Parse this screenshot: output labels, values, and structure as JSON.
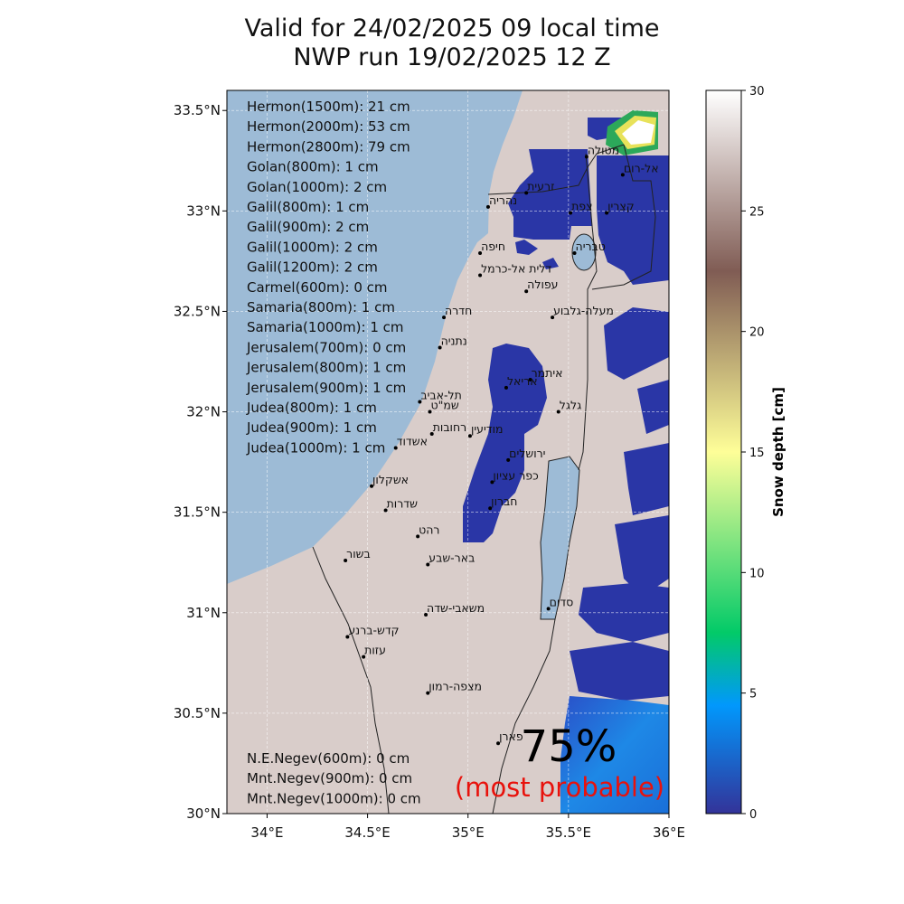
{
  "title": {
    "line1": "Valid for 24/02/2025 09 local time",
    "line2": "NWP run 19/02/2025 12 Z"
  },
  "map": {
    "lon_range": [
      33.8,
      36.0
    ],
    "lat_range": [
      30.0,
      33.6
    ],
    "lon_ticks": [
      "34°E",
      "34.5°E",
      "35°E",
      "35.5°E",
      "36°E"
    ],
    "lat_ticks": [
      "30°N",
      "30.5°N",
      "31°N",
      "31.5°N",
      "32°N",
      "32.5°N",
      "33°N",
      "33.5°N"
    ],
    "grid": true,
    "colors": {
      "sea": "#9dbbd6",
      "land": "#d9cdca",
      "snow_low": "#2a36a6"
    }
  },
  "north_stats": [
    "Hermon(1500m): 21 cm",
    "Hermon(2000m): 53 cm",
    "Hermon(2800m): 79 cm",
    "Golan(800m): 1 cm",
    "Golan(1000m): 2 cm",
    "Galil(800m): 1 cm",
    "Galil(900m): 2 cm",
    "Galil(1000m): 2 cm",
    "Galil(1200m): 2 cm",
    "Carmel(600m): 0 cm",
    "Samaria(800m): 1 cm",
    "Samaria(1000m): 1 cm",
    "Jerusalem(700m): 0 cm",
    "Jerusalem(800m): 1 cm",
    "Jerusalem(900m): 1 cm",
    "Judea(800m): 1 cm",
    "Judea(900m): 1 cm",
    "Judea(1000m): 1 cm"
  ],
  "south_stats": [
    "N.E.Negev(600m): 0 cm",
    "Mnt.Negev(900m): 0 cm",
    "Mnt.Negev(1000m): 0 cm"
  ],
  "probability": {
    "value": "75%",
    "label": "(most probable)",
    "label_color": "#e8120c"
  },
  "cities": [
    {
      "name": "מטולה",
      "lon": 35.59,
      "lat": 33.27
    },
    {
      "name": "אל-רום",
      "lon": 35.77,
      "lat": 33.18
    },
    {
      "name": "זרעית",
      "lon": 35.29,
      "lat": 33.09
    },
    {
      "name": "נהריה",
      "lon": 35.1,
      "lat": 33.02
    },
    {
      "name": "צפת",
      "lon": 35.51,
      "lat": 32.99
    },
    {
      "name": "קצרין",
      "lon": 35.69,
      "lat": 32.99
    },
    {
      "name": "חיפה",
      "lon": 35.06,
      "lat": 32.79
    },
    {
      "name": "טבריה",
      "lon": 35.53,
      "lat": 32.79
    },
    {
      "name": "דלית אל-כרמל",
      "lon": 35.06,
      "lat": 32.68
    },
    {
      "name": "עפולה",
      "lon": 35.29,
      "lat": 32.6
    },
    {
      "name": "חדרה",
      "lon": 34.88,
      "lat": 32.47
    },
    {
      "name": "מעלה-גלבוע",
      "lon": 35.42,
      "lat": 32.47
    },
    {
      "name": "נתניה",
      "lon": 34.86,
      "lat": 32.32
    },
    {
      "name": "איתמר",
      "lon": 35.31,
      "lat": 32.16
    },
    {
      "name": "אריאל",
      "lon": 35.19,
      "lat": 32.12
    },
    {
      "name": "תל-אביב",
      "lon": 34.76,
      "lat": 32.05
    },
    {
      "name": "שמ\"ט",
      "lon": 34.81,
      "lat": 32.0
    },
    {
      "name": "גלגל",
      "lon": 35.45,
      "lat": 32.0
    },
    {
      "name": "רחובות",
      "lon": 34.82,
      "lat": 31.89
    },
    {
      "name": "מודיעין",
      "lon": 35.01,
      "lat": 31.88
    },
    {
      "name": "אשדוד",
      "lon": 34.64,
      "lat": 31.82
    },
    {
      "name": "ירושלים",
      "lon": 35.2,
      "lat": 31.76
    },
    {
      "name": "כפר עציון",
      "lon": 35.12,
      "lat": 31.65
    },
    {
      "name": "אשקלון",
      "lon": 34.52,
      "lat": 31.63
    },
    {
      "name": "שדרות",
      "lon": 34.59,
      "lat": 31.51
    },
    {
      "name": "חברון",
      "lon": 35.11,
      "lat": 31.52
    },
    {
      "name": "רהט",
      "lon": 34.75,
      "lat": 31.38
    },
    {
      "name": "בשור",
      "lon": 34.39,
      "lat": 31.26
    },
    {
      "name": "באר-שבע",
      "lon": 34.8,
      "lat": 31.24
    },
    {
      "name": "סדום",
      "lon": 35.4,
      "lat": 31.02
    },
    {
      "name": "משאבי-שדה",
      "lon": 34.79,
      "lat": 30.99
    },
    {
      "name": "קדש-ברנע",
      "lon": 34.4,
      "lat": 30.88
    },
    {
      "name": "עזות",
      "lon": 34.48,
      "lat": 30.78
    },
    {
      "name": "מצפה-רמון",
      "lon": 34.8,
      "lat": 30.6
    },
    {
      "name": "פארן",
      "lon": 35.15,
      "lat": 30.35
    }
  ],
  "colorbar": {
    "label": "Snow depth [cm]",
    "range": [
      0,
      30
    ],
    "ticks": [
      "0",
      "5",
      "10",
      "15",
      "20",
      "25",
      "30"
    ],
    "colormap": "terrain",
    "stops": [
      "#333399",
      "#0198fc",
      "#02ca68",
      "#fefe98",
      "#805c54",
      "#ffffff"
    ]
  }
}
